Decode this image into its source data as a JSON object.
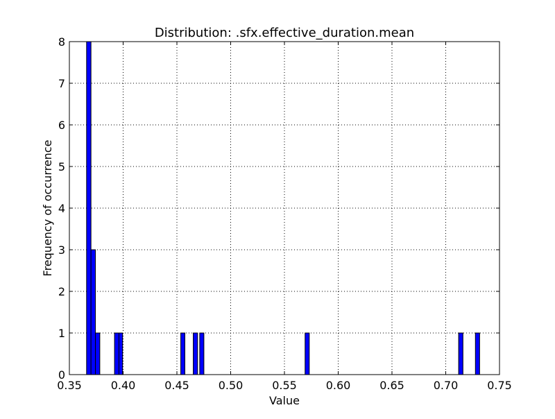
{
  "chart_data": {
    "type": "bar",
    "title": "Distribution: .sfx.effective_duration.mean",
    "xlabel": "Value",
    "ylabel": "Frequency of occurrence",
    "xlim": [
      0.35,
      0.75
    ],
    "ylim": [
      0,
      8
    ],
    "grid": true,
    "bar_color": "#0000ff",
    "bar_edge_color": "#000000",
    "x_ticks": [
      "0.35",
      "0.40",
      "0.45",
      "0.50",
      "0.55",
      "0.60",
      "0.65",
      "0.70",
      "0.75"
    ],
    "y_ticks": [
      "0",
      "1",
      "2",
      "3",
      "4",
      "5",
      "6",
      "7",
      "8"
    ],
    "bins": [
      {
        "x0": 0.366,
        "x1": 0.3701,
        "count": 8
      },
      {
        "x0": 0.3701,
        "x1": 0.3742,
        "count": 3
      },
      {
        "x0": 0.3742,
        "x1": 0.3783,
        "count": 1
      },
      {
        "x0": 0.392,
        "x1": 0.3961,
        "count": 1
      },
      {
        "x0": 0.3961,
        "x1": 0.3995,
        "count": 1
      },
      {
        "x0": 0.4536,
        "x1": 0.4574,
        "count": 1
      },
      {
        "x0": 0.4652,
        "x1": 0.4692,
        "count": 1
      },
      {
        "x0": 0.4712,
        "x1": 0.4751,
        "count": 1
      },
      {
        "x0": 0.5692,
        "x1": 0.5731,
        "count": 1
      },
      {
        "x0": 0.712,
        "x1": 0.716,
        "count": 1
      },
      {
        "x0": 0.7276,
        "x1": 0.7315,
        "count": 1
      }
    ]
  }
}
